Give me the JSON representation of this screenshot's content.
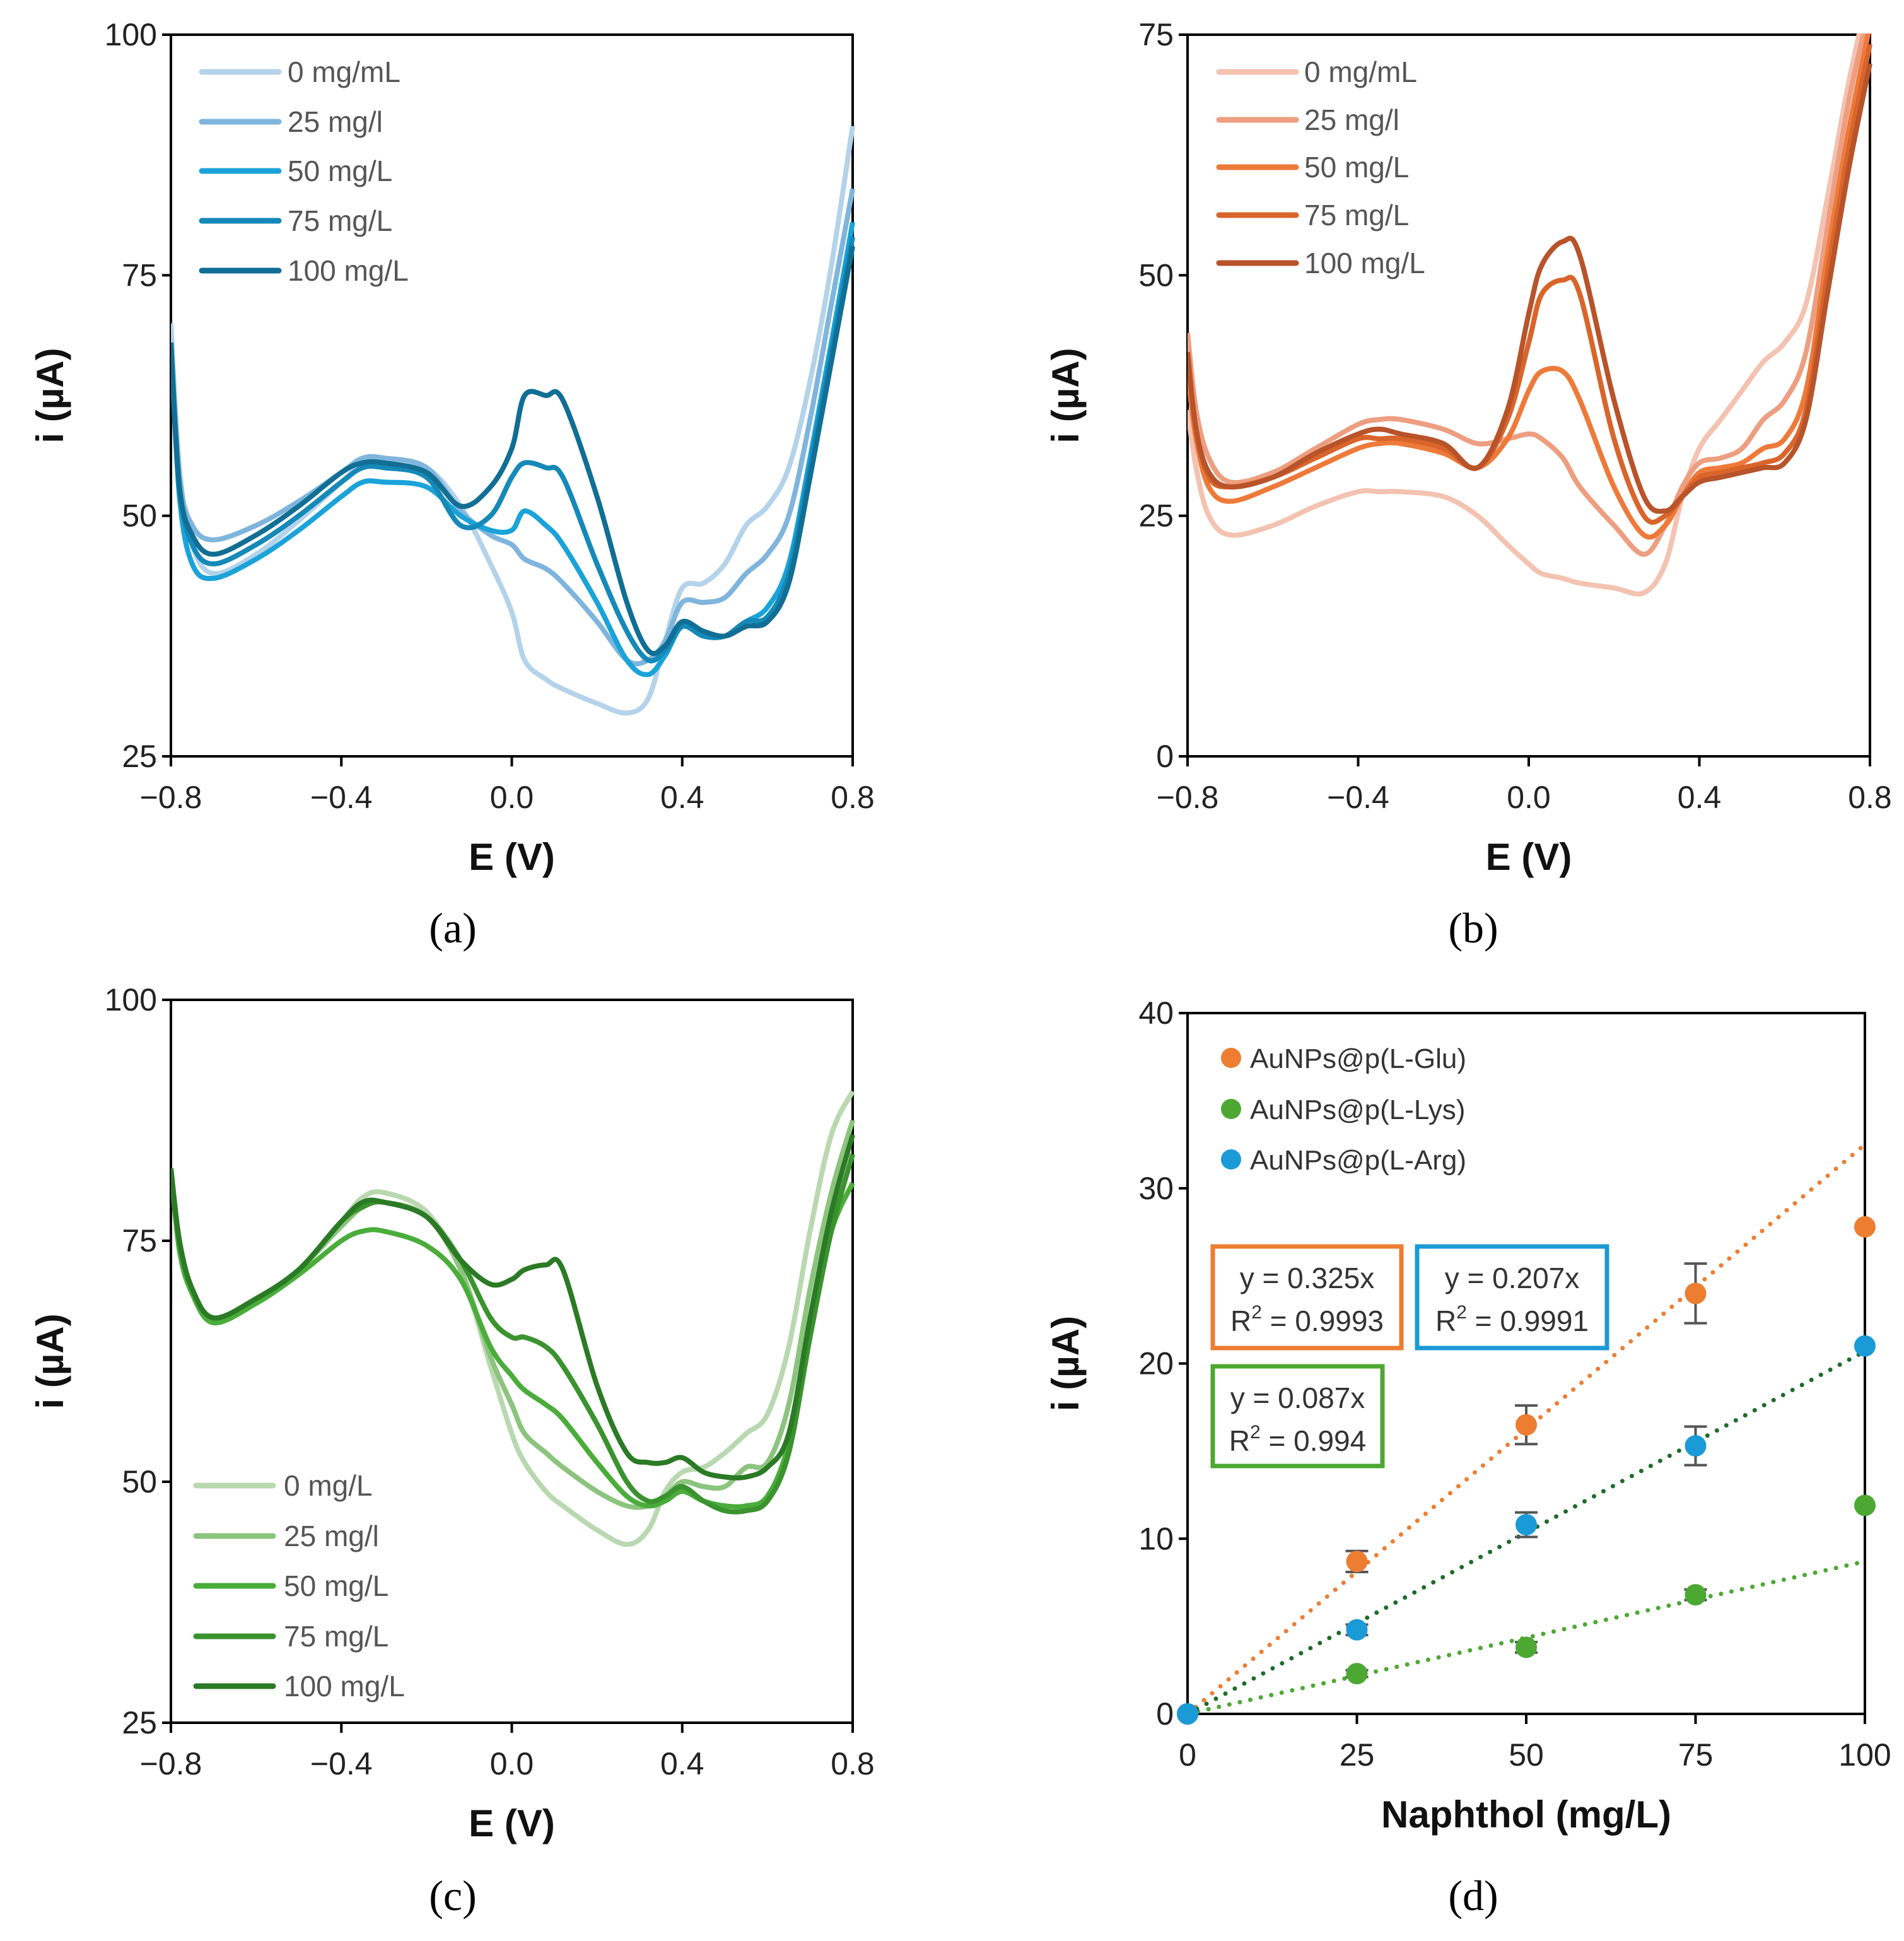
{
  "chart_data": [
    {
      "id": "a",
      "type": "line",
      "panel_label": "(a)",
      "xlabel": "E (V)",
      "ylabel": "i (µA)",
      "xlim": [
        -0.8,
        0.8
      ],
      "ylim": [
        25,
        100
      ],
      "xticks": [
        "−0.8",
        "−0.4",
        "0.0",
        "0.4",
        "0.8"
      ],
      "xtick_values": [
        -0.8,
        -0.4,
        0,
        0.4,
        0.8
      ],
      "yticks": [
        "25",
        "50",
        "75",
        "100"
      ],
      "ytick_values": [
        25,
        50,
        75,
        100
      ],
      "legend_position": "top-left",
      "x": [
        -0.8,
        -0.78,
        -0.75,
        -0.7,
        -0.6,
        -0.5,
        -0.4,
        -0.35,
        -0.3,
        -0.2,
        -0.12,
        -0.05,
        0,
        0.03,
        0.08,
        0.12,
        0.2,
        0.27,
        0.32,
        0.36,
        0.4,
        0.45,
        0.5,
        0.55,
        0.6,
        0.65,
        0.7,
        0.75,
        0.8
      ],
      "series": [
        {
          "name": "0 mg/mL",
          "color": "#b4d3ea",
          "values": [
            70,
            55,
            47,
            44,
            46,
            49.5,
            53.5,
            55.5,
            56,
            55,
            51,
            45,
            40,
            35,
            33,
            32,
            30.5,
            29.5,
            31,
            37,
            42.5,
            43,
            45,
            49,
            51,
            55,
            64,
            76,
            90.5
          ]
        },
        {
          "name": "25 mg/l",
          "color": "#7fb5dd",
          "values": [
            68,
            54,
            49,
            47.5,
            49,
            51.5,
            54.5,
            56,
            56,
            55,
            50.5,
            48,
            47,
            45.5,
            44.5,
            43,
            39,
            35,
            35,
            37,
            41,
            41,
            41.5,
            44,
            46,
            50,
            60,
            72,
            84
          ]
        },
        {
          "name": "50 mg/L",
          "color": "#1aa3d9",
          "values": [
            68,
            52,
            45,
            43.5,
            45.5,
            48.5,
            52,
            53.5,
            53.5,
            53,
            50,
            48.5,
            48.5,
            50.5,
            49,
            47,
            41,
            35,
            33.5,
            35.5,
            38.5,
            37.5,
            37.5,
            39,
            40.5,
            45,
            56,
            68,
            80.5
          ]
        },
        {
          "name": "75 mg/L",
          "color": "#1589b8",
          "values": [
            68,
            53,
            47,
            45,
            47,
            50,
            53.5,
            55,
            55,
            54,
            49,
            50,
            54,
            55.5,
            55,
            54,
            45,
            38,
            35,
            36,
            38.5,
            37.5,
            37.5,
            39,
            39.5,
            44,
            55,
            67,
            79
          ]
        },
        {
          "name": "100 mg/L",
          "color": "#116e94",
          "values": [
            68,
            53,
            48,
            46,
            48,
            51,
            54.5,
            55.5,
            55.5,
            54.5,
            51,
            53,
            57,
            62.5,
            62.5,
            62,
            52,
            41,
            36,
            36.5,
            39,
            38,
            37.5,
            38.5,
            39,
            43,
            54,
            66,
            78
          ]
        }
      ]
    },
    {
      "id": "b",
      "type": "line",
      "panel_label": "(b)",
      "xlabel": "E (V)",
      "ylabel": "i (µA)",
      "xlim": [
        -0.8,
        0.8
      ],
      "ylim": [
        0,
        75
      ],
      "xticks": [
        "−0.8",
        "−0.4",
        "0.0",
        "0.4",
        "0.8"
      ],
      "xtick_values": [
        -0.8,
        -0.4,
        0,
        0.4,
        0.8
      ],
      "yticks": [
        "0",
        "25",
        "50",
        "75"
      ],
      "ytick_values": [
        0,
        25,
        50,
        75
      ],
      "legend_position": "top-left",
      "x": [
        -0.8,
        -0.78,
        -0.75,
        -0.7,
        -0.6,
        -0.5,
        -0.4,
        -0.35,
        -0.3,
        -0.2,
        -0.12,
        -0.05,
        0,
        0.03,
        0.08,
        0.12,
        0.2,
        0.27,
        0.32,
        0.36,
        0.4,
        0.45,
        0.5,
        0.55,
        0.6,
        0.65,
        0.7,
        0.75,
        0.8
      ],
      "series": [
        {
          "name": "0 mg/mL",
          "color": "#f4c2b0",
          "values": [
            36,
            30,
            25,
            23,
            24,
            26,
            27.5,
            27.5,
            27.5,
            27,
            25,
            22,
            20,
            19,
            18.5,
            18,
            17.5,
            17,
            20,
            27,
            32,
            35,
            38,
            41,
            43,
            47,
            58,
            70,
            80
          ]
        },
        {
          "name": "25 mg/l",
          "color": "#ee9e80",
          "values": [
            44,
            36,
            31,
            28.5,
            29.5,
            32,
            34.5,
            35,
            35,
            34,
            32.5,
            33,
            33.5,
            33,
            31,
            28,
            24,
            21,
            24,
            28,
            30.5,
            31,
            32,
            35,
            37,
            42,
            55,
            68,
            78
          ]
        },
        {
          "name": "50 mg/L",
          "color": "#ee7a3a",
          "values": [
            40,
            33,
            28,
            26.5,
            28,
            30,
            32,
            32.5,
            32.5,
            31.5,
            30,
            33,
            38,
            40,
            40,
            37,
            28,
            23,
            24,
            27,
            29.5,
            30,
            30.5,
            32,
            33,
            38,
            52,
            65,
            76
          ]
        },
        {
          "name": "75 mg/L",
          "color": "#d9652b",
          "values": [
            42,
            34,
            29,
            28,
            29,
            31,
            33,
            33,
            33,
            32,
            30,
            35,
            43,
            48,
            49.5,
            48,
            33,
            25,
            25,
            27,
            29,
            29.5,
            30,
            30.5,
            31.5,
            36,
            50,
            63,
            74
          ]
        },
        {
          "name": "100 mg/L",
          "color": "#b8532a",
          "values": [
            42,
            34,
            29.5,
            28,
            29,
            31.5,
            33.5,
            34,
            33.5,
            32.5,
            30,
            36,
            46,
            51,
            53.5,
            52,
            37,
            27,
            25.5,
            27,
            28.5,
            29,
            29.5,
            30,
            30.5,
            35,
            48,
            61,
            72
          ]
        }
      ]
    },
    {
      "id": "c",
      "type": "line",
      "panel_label": "(c)",
      "xlabel": "E (V)",
      "ylabel": "i (µA)",
      "xlim": [
        -0.8,
        0.8
      ],
      "ylim": [
        25,
        100
      ],
      "xticks": [
        "−0.8",
        "−0.4",
        "0.0",
        "0.4",
        "0.8"
      ],
      "xtick_values": [
        -0.8,
        -0.4,
        0,
        0.4,
        0.8
      ],
      "yticks": [
        "25",
        "50",
        "75",
        "100"
      ],
      "ytick_values": [
        25,
        50,
        75,
        100
      ],
      "legend_position": "bottom-left",
      "x": [
        -0.8,
        -0.78,
        -0.75,
        -0.7,
        -0.6,
        -0.5,
        -0.4,
        -0.35,
        -0.3,
        -0.2,
        -0.12,
        -0.05,
        0,
        0.03,
        0.08,
        0.12,
        0.2,
        0.27,
        0.32,
        0.36,
        0.4,
        0.45,
        0.5,
        0.55,
        0.6,
        0.65,
        0.7,
        0.75,
        0.8
      ],
      "series": [
        {
          "name": "0 mg/L",
          "color": "#b9d8b0",
          "values": [
            82.5,
            75,
            70,
            67,
            69,
            72,
            77,
            79.5,
            80,
            78,
            72,
            62,
            55,
            52,
            49,
            47.5,
            45,
            43.5,
            45,
            49,
            51,
            51.5,
            53,
            55,
            57,
            64,
            76,
            86,
            90.5
          ]
        },
        {
          "name": "25 mg/l",
          "color": "#8cc47e",
          "values": [
            82.5,
            75,
            70,
            67,
            69,
            72,
            76.5,
            78.5,
            79,
            77.5,
            72,
            63,
            58,
            55,
            53,
            51.5,
            49,
            47.5,
            47.5,
            48.5,
            50,
            49.5,
            49.5,
            51.5,
            52,
            58,
            70,
            80,
            87.5
          ]
        },
        {
          "name": "50 mg/L",
          "color": "#4aad3a",
          "values": [
            82.5,
            74,
            69.5,
            66.5,
            68.5,
            71.5,
            75,
            76,
            76,
            74.5,
            71,
            64,
            61,
            59.5,
            58,
            56.5,
            52,
            48.5,
            47.5,
            48,
            49,
            48,
            47.5,
            47.5,
            48.5,
            54,
            66,
            76,
            81
          ]
        },
        {
          "name": "75 mg/L",
          "color": "#3a932e",
          "values": [
            82.5,
            75,
            70,
            67,
            69,
            72,
            77,
            78.5,
            79,
            77.5,
            73,
            67,
            65,
            65,
            64,
            62,
            56,
            50,
            48,
            48.5,
            49.5,
            48,
            47,
            47,
            48,
            53,
            65,
            76,
            84
          ]
        },
        {
          "name": "100 mg/L",
          "color": "#2b7a25",
          "values": [
            82.5,
            75,
            70,
            67,
            69,
            72,
            77,
            79,
            79,
            77.5,
            73,
            70.5,
            71,
            72,
            72.5,
            72,
            60,
            53,
            52,
            52,
            52.5,
            51,
            50.5,
            50.5,
            51.5,
            55,
            67,
            78,
            86
          ]
        }
      ]
    },
    {
      "id": "d",
      "type": "scatter",
      "panel_label": "(d)",
      "xlabel": "Naphthol (mg/L)",
      "ylabel": "i (µA)",
      "xlim": [
        0,
        100
      ],
      "ylim": [
        0,
        40
      ],
      "xticks": [
        "0",
        "25",
        "50",
        "75",
        "100"
      ],
      "xtick_values": [
        0,
        25,
        50,
        75,
        100
      ],
      "yticks": [
        "0",
        "10",
        "20",
        "30",
        "40"
      ],
      "ytick_values": [
        0,
        10,
        20,
        30,
        40
      ],
      "legend_position": "top-left",
      "x": [
        0,
        25,
        50,
        75,
        100
      ],
      "series": [
        {
          "name": "AuNPs@p(L-Glu)",
          "color": "#ed7d31",
          "trend_color": "#ed7d31",
          "values": [
            0,
            8.7,
            16.5,
            24.0,
            27.8
          ],
          "errors": [
            0,
            0.6,
            1.1,
            1.7,
            0
          ],
          "slope": 0.325,
          "equation": "y = 0.325x",
          "r2_label": "R",
          "r2_value": " = 0.9993"
        },
        {
          "name": "AuNPs@p(L-Lys)",
          "color": "#4ca832",
          "trend_color": "#4ca832",
          "values": [
            0,
            2.3,
            3.8,
            6.8,
            11.9
          ],
          "errors": [
            0,
            0.2,
            0.3,
            0.3,
            0
          ],
          "slope": 0.087,
          "equation": "y = 0.087x",
          "r2_label": "R",
          "r2_value": " = 0.994"
        },
        {
          "name": "AuNPs@p(L-Arg)",
          "color": "#1a9ad6",
          "trend_color": "#1e6b2a",
          "values": [
            0,
            4.8,
            10.8,
            15.3,
            21.0
          ],
          "errors": [
            0,
            0.3,
            0.7,
            1.1,
            0
          ],
          "slope": 0.207,
          "equation": "y = 0.207x",
          "r2_label": "R",
          "r2_value": " = 0.9991"
        }
      ]
    }
  ],
  "superscript_two": "2"
}
